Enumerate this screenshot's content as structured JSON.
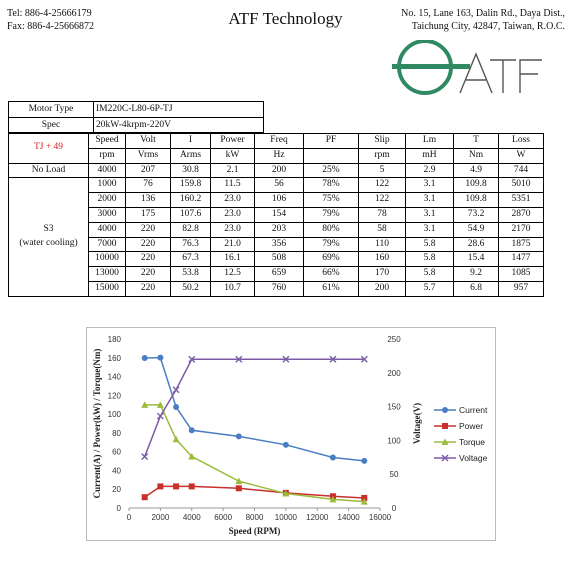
{
  "header": {
    "tel": "Tel: 886-4-25666179",
    "fax": "Fax: 886-4-25666872",
    "company": "ATF Technology",
    "address_line1": "No. 15, Lane 163, Dalin Rd., Daya Dist.,",
    "address_line2": "Taichung City, 42847, Taiwan, R.O.C.",
    "logo_text": "ATF"
  },
  "spec": {
    "motor_type_label": "Motor Type",
    "motor_type_value": "IM220C-L80-6P-TJ",
    "spec_label": "Spec",
    "spec_value": "20kW-4krpm-220V"
  },
  "table": {
    "corner_label": "TJ + 49",
    "headers": [
      "Speed",
      "Volt",
      "I",
      "Power",
      "Freq",
      "PF",
      "Slip",
      "Lm",
      "T",
      "Loss"
    ],
    "units": [
      "rpm",
      "Vrms",
      "Arms",
      "kW",
      "Hz",
      "",
      "rpm",
      "mH",
      "Nm",
      "W"
    ],
    "no_load_label": "No Load",
    "no_load_row": [
      "4000",
      "207",
      "30.8",
      "2.1",
      "200",
      "25%",
      "5",
      "2.9",
      "4.9",
      "744"
    ],
    "s3_label": "S3",
    "s3_sublabel": "(water cooling)",
    "rows": [
      [
        "1000",
        "76",
        "159.8",
        "11.5",
        "56",
        "78%",
        "122",
        "3.1",
        "109.8",
        "5010"
      ],
      [
        "2000",
        "136",
        "160.2",
        "23.0",
        "106",
        "75%",
        "122",
        "3.1",
        "109.8",
        "5351"
      ],
      [
        "3000",
        "175",
        "107.6",
        "23.0",
        "154",
        "79%",
        "78",
        "3.1",
        "73.2",
        "2870"
      ],
      [
        "4000",
        "220",
        "82.8",
        "23.0",
        "203",
        "80%",
        "58",
        "3.1",
        "54.9",
        "2170"
      ],
      [
        "7000",
        "220",
        "76.3",
        "21.0",
        "356",
        "79%",
        "110",
        "5.8",
        "28.6",
        "1875"
      ],
      [
        "10000",
        "220",
        "67.3",
        "16.1",
        "508",
        "69%",
        "160",
        "5.8",
        "15.4",
        "1477"
      ],
      [
        "13000",
        "220",
        "53.8",
        "12.5",
        "659",
        "66%",
        "170",
        "5.8",
        "9.2",
        "1085"
      ],
      [
        "15000",
        "220",
        "50.2",
        "10.7",
        "760",
        "61%",
        "200",
        "5.7",
        "6.8",
        "957"
      ]
    ]
  },
  "chart_data": {
    "type": "line",
    "xlabel": "Speed (RPM)",
    "ylabel": "Current(A) / Power(kW) / Torque(Nm)",
    "y2label": "Voltage(V)",
    "xlim": [
      0,
      16000
    ],
    "xticks": [
      0,
      2000,
      4000,
      6000,
      8000,
      10000,
      12000,
      14000,
      16000
    ],
    "ylim": [
      0,
      180
    ],
    "yticks": [
      0,
      20,
      40,
      60,
      80,
      100,
      120,
      140,
      160,
      180
    ],
    "y2lim": [
      0,
      250
    ],
    "y2ticks": [
      0,
      50,
      100,
      150,
      200,
      250
    ],
    "x": [
      1000,
      2000,
      3000,
      4000,
      7000,
      10000,
      13000,
      15000
    ],
    "series": [
      {
        "name": "Current",
        "axis": "left",
        "color": "#4a7ec4",
        "marker": "circle",
        "values": [
          159.8,
          160.2,
          107.6,
          82.8,
          76.3,
          67.3,
          53.8,
          50.2
        ]
      },
      {
        "name": "Power",
        "axis": "left",
        "color": "#c8302c",
        "marker": "square",
        "values": [
          11.5,
          23.0,
          23.0,
          23.0,
          21.0,
          16.1,
          12.5,
          10.7
        ]
      },
      {
        "name": "Torque",
        "axis": "left",
        "color": "#9bbb3c",
        "marker": "triangle",
        "values": [
          109.8,
          109.8,
          73.2,
          54.9,
          28.6,
          15.4,
          9.2,
          6.8
        ]
      },
      {
        "name": "Voltage",
        "axis": "right",
        "color": "#7b5aa6",
        "marker": "x",
        "values": [
          76,
          136,
          175,
          220,
          220,
          220,
          220,
          220
        ]
      }
    ],
    "legend": "right",
    "grid": false
  }
}
